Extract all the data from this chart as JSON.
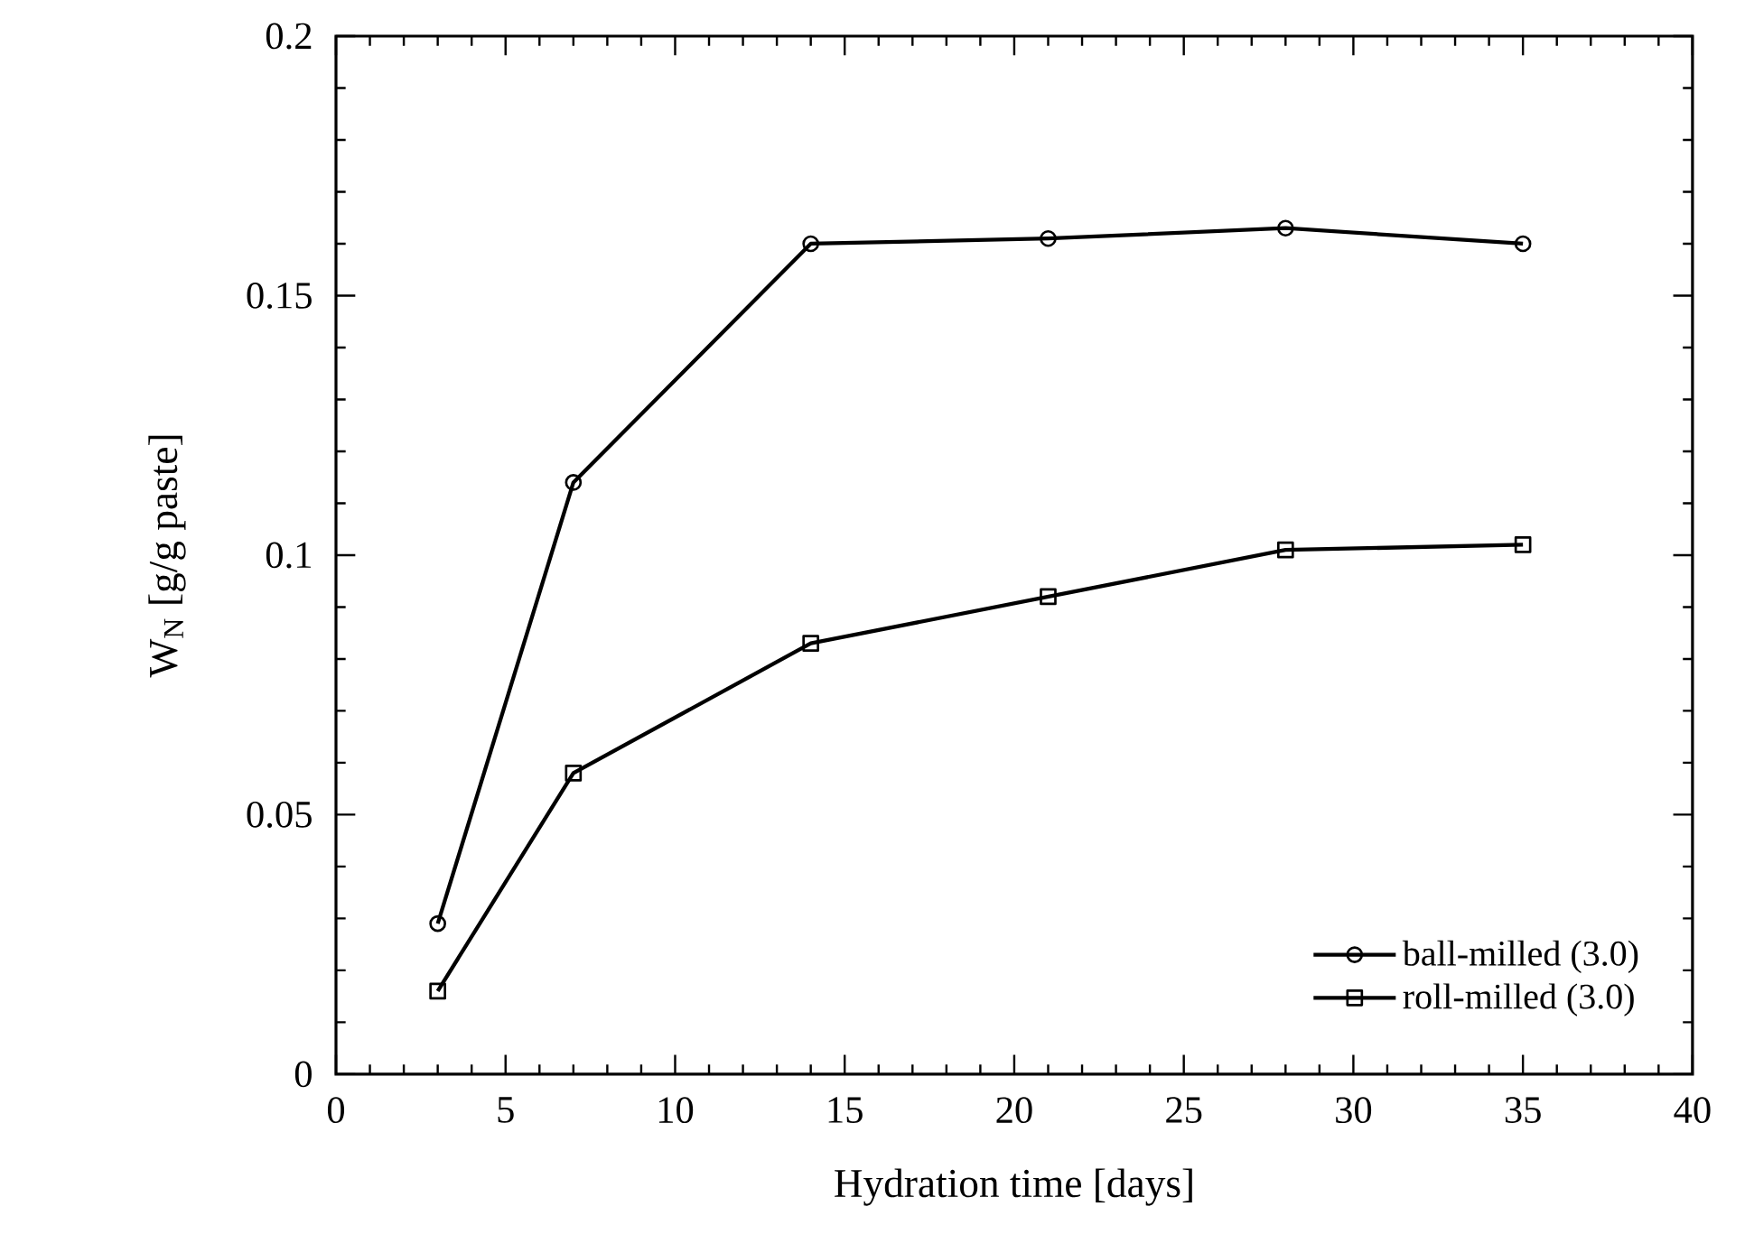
{
  "chart_data": {
    "type": "line",
    "xlabel": "Hydration time [days]",
    "ylabel": "W$_{N}$ [g/g paste]",
    "x": [
      3,
      7,
      14,
      21,
      28,
      35
    ],
    "series": [
      {
        "name": "ball-milled (3.0)",
        "color": "#000000",
        "marker": "circle",
        "values": [
          0.029,
          0.114,
          0.16,
          0.161,
          0.163,
          0.16
        ]
      },
      {
        "name": "roll-milled (3.0)",
        "color": "#000000",
        "marker": "square",
        "values": [
          0.016,
          0.058,
          0.083,
          0.092,
          0.101,
          0.102
        ]
      }
    ],
    "xlim": [
      0,
      40
    ],
    "xticks": [
      0,
      5,
      10,
      15,
      20,
      25,
      30,
      35,
      40
    ],
    "ylim": [
      0,
      0.2
    ],
    "yticks": [
      0,
      0.05,
      0.1,
      0.15,
      0.2
    ],
    "legend": "bottom right",
    "grid": false,
    "line_style": "solid"
  }
}
